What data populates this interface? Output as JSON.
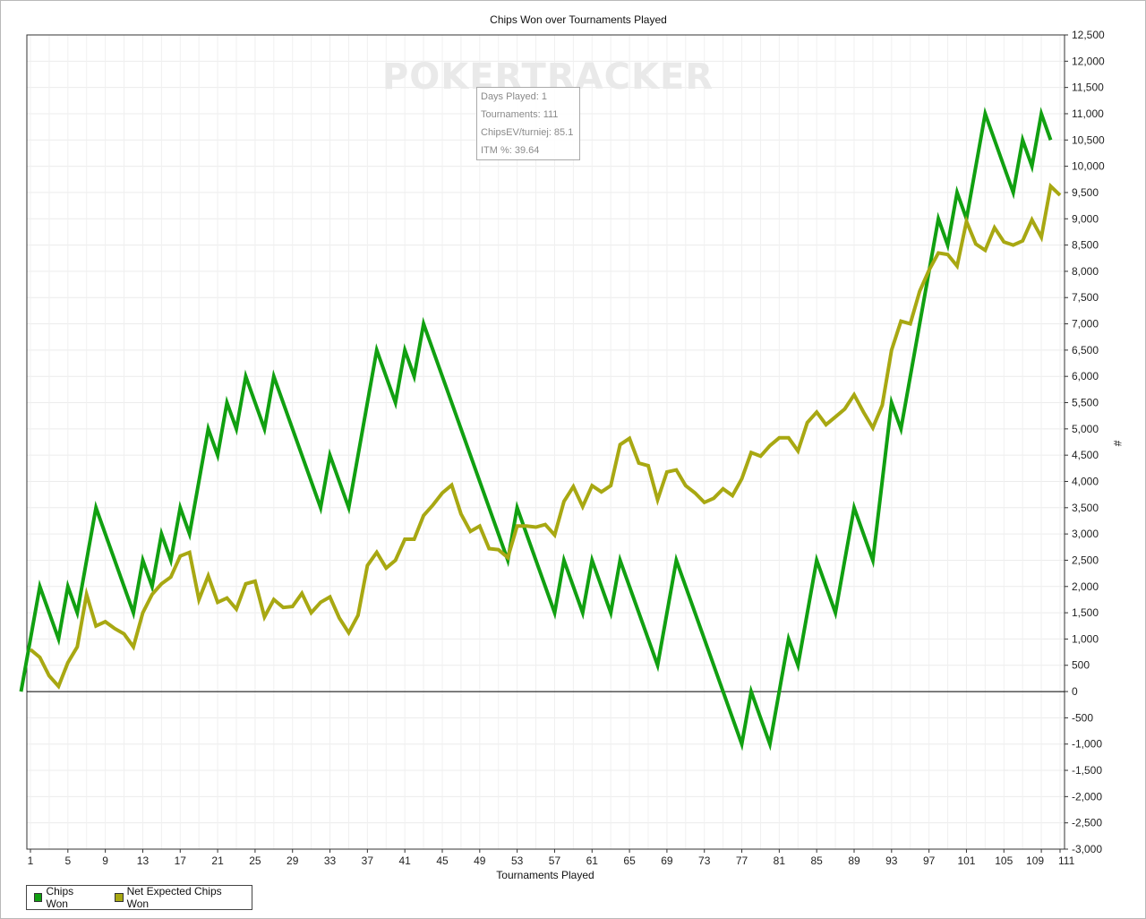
{
  "chart_data": {
    "type": "line",
    "title": "Chips Won over Tournaments Played",
    "xlabel": "Tournaments Played",
    "ylabel": "#",
    "xlim": [
      0,
      112
    ],
    "ylim": [
      -3000,
      12500
    ],
    "x_ticks": [
      "1",
      "5",
      "9",
      "13",
      "17",
      "21",
      "25",
      "29",
      "33",
      "37",
      "41",
      "45",
      "49",
      "53",
      "57",
      "61",
      "65",
      "69",
      "73",
      "77",
      "81",
      "85",
      "89",
      "93",
      "97",
      "101",
      "105",
      "109",
      "111"
    ],
    "y_ticks": [
      "12,500",
      "12,000",
      "11,500",
      "11,000",
      "10,500",
      "10,000",
      "9,500",
      "9,000",
      "8,500",
      "8,000",
      "7,500",
      "7,000",
      "6,500",
      "6,000",
      "5,500",
      "5,000",
      "4,500",
      "4,000",
      "3,500",
      "3,000",
      "2,500",
      "2,000",
      "1,500",
      "1,000",
      "500",
      "0",
      "-500",
      "-1,000",
      "-1,500",
      "-2,000",
      "-2,500",
      "-3,000"
    ],
    "grid": true,
    "legend_position": "bottom-left",
    "series": [
      {
        "name": "Chips Won",
        "color": "#11a011",
        "points": [
          [
            0,
            0
          ],
          [
            2,
            2000
          ],
          [
            4,
            1000
          ],
          [
            5,
            2000
          ],
          [
            6,
            1500
          ],
          [
            8,
            3500
          ],
          [
            12,
            1500
          ],
          [
            13,
            2500
          ],
          [
            14,
            2000
          ],
          [
            15,
            3000
          ],
          [
            16,
            2500
          ],
          [
            17,
            3500
          ],
          [
            18,
            3000
          ],
          [
            20,
            5000
          ],
          [
            21,
            4500
          ],
          [
            22,
            5500
          ],
          [
            23,
            5000
          ],
          [
            24,
            6000
          ],
          [
            26,
            5000
          ],
          [
            27,
            6000
          ],
          [
            32,
            3500
          ],
          [
            33,
            4500
          ],
          [
            35,
            3500
          ],
          [
            38,
            6500
          ],
          [
            40,
            5500
          ],
          [
            41,
            6500
          ],
          [
            42,
            6000
          ],
          [
            43,
            7000
          ],
          [
            52,
            2500
          ],
          [
            53,
            3500
          ],
          [
            57,
            1500
          ],
          [
            58,
            2500
          ],
          [
            60,
            1500
          ],
          [
            61,
            2500
          ],
          [
            63,
            1500
          ],
          [
            64,
            2500
          ],
          [
            68,
            500
          ],
          [
            70,
            2500
          ],
          [
            77,
            -1000
          ],
          [
            78,
            0
          ],
          [
            80,
            -1000
          ],
          [
            82,
            1000
          ],
          [
            83,
            500
          ],
          [
            85,
            2500
          ],
          [
            87,
            1500
          ],
          [
            89,
            3500
          ],
          [
            91,
            2500
          ],
          [
            93,
            5500
          ],
          [
            94,
            5000
          ],
          [
            98,
            9000
          ],
          [
            99,
            8500
          ],
          [
            100,
            9500
          ],
          [
            101,
            9000
          ],
          [
            103,
            11000
          ],
          [
            106,
            9500
          ],
          [
            107,
            10500
          ],
          [
            108,
            10000
          ],
          [
            109,
            11000
          ],
          [
            110,
            10500
          ]
        ]
      },
      {
        "name": "Net Expected Chips Won",
        "color": "#a8a812",
        "points": [
          [
            1,
            800
          ],
          [
            2,
            650
          ],
          [
            3,
            300
          ],
          [
            4,
            100
          ],
          [
            5,
            550
          ],
          [
            6,
            850
          ],
          [
            7,
            1850
          ],
          [
            8,
            1250
          ],
          [
            9,
            1330
          ],
          [
            10,
            1200
          ],
          [
            11,
            1100
          ],
          [
            12,
            850
          ],
          [
            13,
            1500
          ],
          [
            14,
            1850
          ],
          [
            15,
            2050
          ],
          [
            16,
            2180
          ],
          [
            17,
            2580
          ],
          [
            18,
            2650
          ],
          [
            19,
            1750
          ],
          [
            20,
            2200
          ],
          [
            21,
            1700
          ],
          [
            22,
            1780
          ],
          [
            23,
            1570
          ],
          [
            24,
            2050
          ],
          [
            25,
            2100
          ],
          [
            26,
            1420
          ],
          [
            27,
            1750
          ],
          [
            28,
            1600
          ],
          [
            29,
            1620
          ],
          [
            30,
            1870
          ],
          [
            31,
            1500
          ],
          [
            32,
            1700
          ],
          [
            33,
            1800
          ],
          [
            34,
            1400
          ],
          [
            35,
            1120
          ],
          [
            36,
            1450
          ],
          [
            37,
            2400
          ],
          [
            38,
            2650
          ],
          [
            39,
            2350
          ],
          [
            40,
            2500
          ],
          [
            41,
            2900
          ],
          [
            42,
            2900
          ],
          [
            43,
            3350
          ],
          [
            44,
            3550
          ],
          [
            45,
            3780
          ],
          [
            46,
            3930
          ],
          [
            47,
            3380
          ],
          [
            48,
            3050
          ],
          [
            49,
            3150
          ],
          [
            50,
            2720
          ],
          [
            51,
            2700
          ],
          [
            52,
            2550
          ],
          [
            53,
            3150
          ],
          [
            54,
            3150
          ],
          [
            55,
            3130
          ],
          [
            56,
            3180
          ],
          [
            57,
            2980
          ],
          [
            58,
            3620
          ],
          [
            59,
            3900
          ],
          [
            60,
            3520
          ],
          [
            61,
            3920
          ],
          [
            62,
            3800
          ],
          [
            63,
            3920
          ],
          [
            64,
            4700
          ],
          [
            65,
            4820
          ],
          [
            66,
            4350
          ],
          [
            67,
            4300
          ],
          [
            68,
            3650
          ],
          [
            69,
            4180
          ],
          [
            70,
            4220
          ],
          [
            71,
            3920
          ],
          [
            72,
            3780
          ],
          [
            73,
            3600
          ],
          [
            74,
            3680
          ],
          [
            75,
            3860
          ],
          [
            76,
            3730
          ],
          [
            77,
            4050
          ],
          [
            78,
            4550
          ],
          [
            79,
            4480
          ],
          [
            80,
            4680
          ],
          [
            81,
            4830
          ],
          [
            82,
            4830
          ],
          [
            83,
            4580
          ],
          [
            84,
            5120
          ],
          [
            85,
            5320
          ],
          [
            86,
            5080
          ],
          [
            87,
            5230
          ],
          [
            88,
            5380
          ],
          [
            89,
            5650
          ],
          [
            90,
            5320
          ],
          [
            91,
            5020
          ],
          [
            92,
            5450
          ],
          [
            93,
            6500
          ],
          [
            94,
            7050
          ],
          [
            95,
            7000
          ],
          [
            96,
            7620
          ],
          [
            97,
            8020
          ],
          [
            98,
            8350
          ],
          [
            99,
            8320
          ],
          [
            100,
            8100
          ],
          [
            101,
            8950
          ],
          [
            102,
            8520
          ],
          [
            103,
            8400
          ],
          [
            104,
            8830
          ],
          [
            105,
            8560
          ],
          [
            106,
            8500
          ],
          [
            107,
            8580
          ],
          [
            108,
            8980
          ],
          [
            109,
            8650
          ],
          [
            110,
            9620
          ],
          [
            111,
            9450
          ]
        ]
      }
    ]
  },
  "watermark": "POKERTRACKER",
  "tooltip": {
    "days_played": "Days Played: 1",
    "tournaments": "Tournaments: 111",
    "chipsev": "ChipsEV/turniej: 85.1",
    "itm": "ITM %: 39.64"
  },
  "legend": {
    "chips_won": "Chips Won",
    "net_expected": "Net Expected Chips Won"
  }
}
